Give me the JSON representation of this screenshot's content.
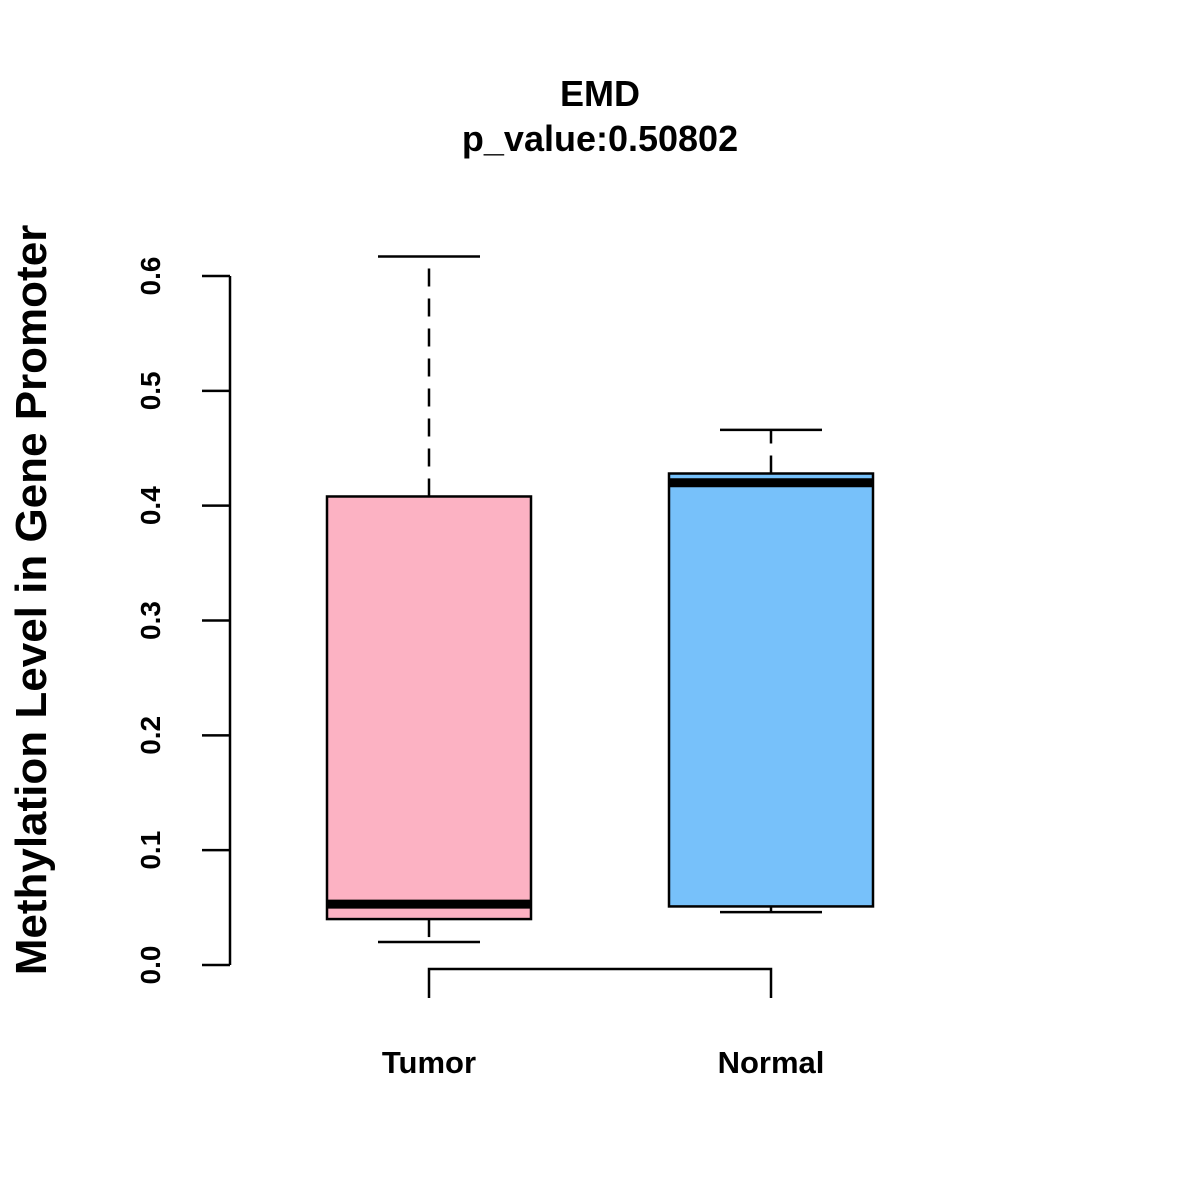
{
  "chart_data": {
    "type": "box",
    "title": "EMD",
    "subtitle": "p_value:0.50802",
    "xlabel": "",
    "ylabel": "Methylation Level in Gene Promoter",
    "ylim": [
      0,
      0.6
    ],
    "yticks": [
      0.0,
      0.1,
      0.2,
      0.3,
      0.4,
      0.5,
      0.6
    ],
    "ytick_labels": [
      "0.0",
      "0.1",
      "0.2",
      "0.3",
      "0.4",
      "0.5",
      "0.6"
    ],
    "categories": [
      "Tumor",
      "Normal"
    ],
    "boxes": [
      {
        "category": "Tumor",
        "whisker_low": 0.02,
        "q1": 0.04,
        "median": 0.053,
        "q3": 0.408,
        "whisker_high": 0.617,
        "color": "#FCB2C3"
      },
      {
        "category": "Normal",
        "whisker_low": 0.046,
        "q1": 0.051,
        "median": 0.42,
        "q3": 0.428,
        "whisker_high": 0.466,
        "color": "#77C1FA"
      }
    ],
    "comparison_bracket": true,
    "grid": false,
    "legend": "none"
  }
}
